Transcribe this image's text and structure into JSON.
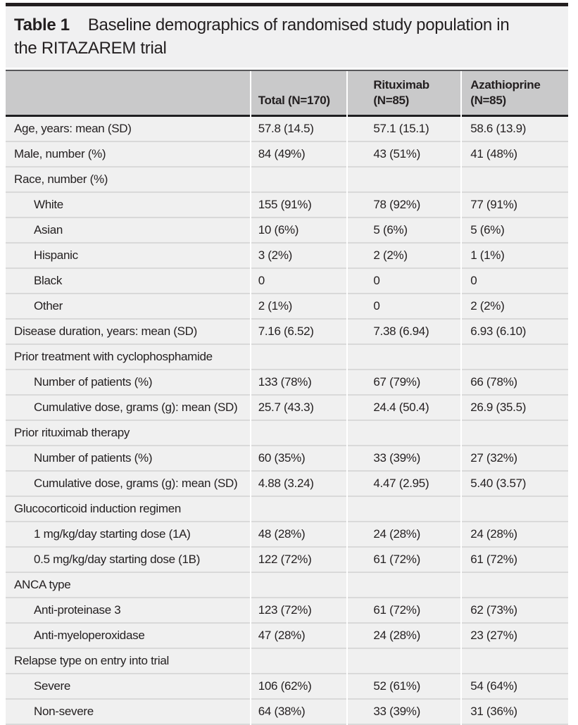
{
  "title": {
    "label": "Table 1",
    "text": "Baseline demographics of randomised study population in\nthe RITAZAREM trial"
  },
  "colors": {
    "rule_black": "#231f20",
    "header_band_bg": "#c9c9ca",
    "title_block_bg": "#f0f0f1",
    "row_bg": "#f0f0f0",
    "row_separator": "#d9d9d9",
    "text": "#231f20"
  },
  "table": {
    "columns": [
      "",
      "Total (N=170)",
      "Rituximab\n(N=85)",
      "Azathioprine\n(N=85)"
    ],
    "rows": [
      {
        "label": "Age, years: mean (SD)",
        "indent": false,
        "total": "57.8 (14.5)",
        "rituximab": "57.1 (15.1)",
        "azathioprine": "58.6 (13.9)"
      },
      {
        "label": "Male, number (%)",
        "indent": false,
        "total": "84 (49%)",
        "rituximab": "43 (51%)",
        "azathioprine": "41 (48%)"
      },
      {
        "label": "Race, number (%)",
        "indent": false,
        "total": "",
        "rituximab": "",
        "azathioprine": ""
      },
      {
        "label": "White",
        "indent": true,
        "total": "155 (91%)",
        "rituximab": "78 (92%)",
        "azathioprine": "77 (91%)"
      },
      {
        "label": "Asian",
        "indent": true,
        "total": "10 (6%)",
        "rituximab": "5 (6%)",
        "azathioprine": "5 (6%)"
      },
      {
        "label": "Hispanic",
        "indent": true,
        "total": "3 (2%)",
        "rituximab": "2 (2%)",
        "azathioprine": "1 (1%)"
      },
      {
        "label": "Black",
        "indent": true,
        "total": "0",
        "rituximab": "0",
        "azathioprine": "0"
      },
      {
        "label": "Other",
        "indent": true,
        "total": "2 (1%)",
        "rituximab": "0",
        "azathioprine": "2 (2%)"
      },
      {
        "label": "Disease duration, years: mean (SD)",
        "indent": false,
        "total": "7.16 (6.52)",
        "rituximab": "7.38 (6.94)",
        "azathioprine": "6.93 (6.10)"
      },
      {
        "label": "Prior treatment with cyclophosphamide",
        "indent": false,
        "total": "",
        "rituximab": "",
        "azathioprine": ""
      },
      {
        "label": "Number of patients (%)",
        "indent": true,
        "total": "133 (78%)",
        "rituximab": "67 (79%)",
        "azathioprine": "66 (78%)"
      },
      {
        "label": "Cumulative dose, grams (g): mean (SD)",
        "indent": true,
        "total": "25.7 (43.3)",
        "rituximab": "24.4 (50.4)",
        "azathioprine": "26.9 (35.5)"
      },
      {
        "label": "Prior rituximab therapy",
        "indent": false,
        "total": "",
        "rituximab": "",
        "azathioprine": ""
      },
      {
        "label": "Number of patients (%)",
        "indent": true,
        "total": "60 (35%)",
        "rituximab": "33 (39%)",
        "azathioprine": "27 (32%)"
      },
      {
        "label": "Cumulative dose, grams (g): mean (SD)",
        "indent": true,
        "total": "4.88 (3.24)",
        "rituximab": "4.47 (2.95)",
        "azathioprine": "5.40 (3.57)"
      },
      {
        "label": "Glucocorticoid induction regimen",
        "indent": false,
        "total": "",
        "rituximab": "",
        "azathioprine": ""
      },
      {
        "label": "1 mg/kg/day starting dose (1A)",
        "indent": true,
        "total": "48 (28%)",
        "rituximab": "24 (28%)",
        "azathioprine": "24 (28%)"
      },
      {
        "label": "0.5 mg/kg/day starting dose (1B)",
        "indent": true,
        "total": "122 (72%)",
        "rituximab": "61 (72%)",
        "azathioprine": "61 (72%)"
      },
      {
        "label": "ANCA type",
        "indent": false,
        "total": "",
        "rituximab": "",
        "azathioprine": ""
      },
      {
        "label": "Anti-proteinase 3",
        "indent": true,
        "total": "123 (72%)",
        "rituximab": "61 (72%)",
        "azathioprine": "62 (73%)"
      },
      {
        "label": "Anti-myeloperoxidase",
        "indent": true,
        "total": "47 (28%)",
        "rituximab": "24 (28%)",
        "azathioprine": "23 (27%)"
      },
      {
        "label": "Relapse type on entry into trial",
        "indent": false,
        "total": "",
        "rituximab": "",
        "azathioprine": ""
      },
      {
        "label": "Severe",
        "indent": true,
        "total": "106 (62%)",
        "rituximab": "52 (61%)",
        "azathioprine": "54 (64%)"
      },
      {
        "label": "Non-severe",
        "indent": true,
        "total": "64 (38%)",
        "rituximab": "33 (39%)",
        "azathioprine": "31 (36%)"
      }
    ]
  }
}
